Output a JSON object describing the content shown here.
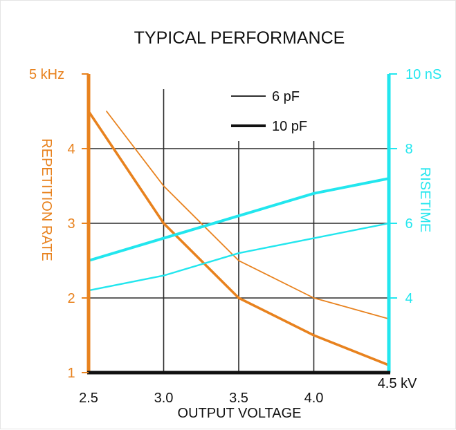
{
  "chart_data": {
    "type": "line",
    "title": "TYPICAL PERFORMANCE",
    "xlabel": "OUTPUT VOLTAGE",
    "ylabel_left": "REPETITION RATE",
    "ylabel_right": "RISETIME",
    "xlim": [
      2.5,
      4.5
    ],
    "ylim_left": [
      1,
      5
    ],
    "ylim_right": [
      2,
      10
    ],
    "x_ticks": [
      "2.5",
      "3.0",
      "3.5",
      "4.0"
    ],
    "x_end_label": "4.5 kV",
    "y_left_ticks": [
      "1",
      "2",
      "3",
      "4"
    ],
    "y_left_top_label": "5 kHz",
    "y_right_ticks": [
      "4",
      "6",
      "8"
    ],
    "y_right_top_label": "10 nS",
    "grid": true,
    "legend": [
      {
        "label": "6 pF",
        "style": "thin"
      },
      {
        "label": "10 pF",
        "style": "thick"
      }
    ],
    "colors": {
      "repetition": "#e8821e",
      "risetime": "#22e6ee",
      "axis": "#111111",
      "grid": "#2a2a2a",
      "text": "#111111"
    },
    "series": [
      {
        "name": "6 pF",
        "axis": "left",
        "quantity": "repetition",
        "style": "thin",
        "x": [
          2.62,
          3.0,
          3.5,
          4.0,
          4.5
        ],
        "y": [
          4.5,
          3.5,
          2.5,
          2.0,
          1.72
        ]
      },
      {
        "name": "10 pF",
        "axis": "left",
        "quantity": "repetition",
        "style": "thick",
        "x": [
          2.5,
          3.0,
          3.5,
          4.0,
          4.5
        ],
        "y": [
          4.5,
          3.0,
          2.0,
          1.5,
          1.1
        ]
      },
      {
        "name": "6 pF",
        "axis": "right",
        "quantity": "risetime",
        "style": "thin",
        "x": [
          2.5,
          3.0,
          3.5,
          4.0,
          4.5
        ],
        "y": [
          4.2,
          4.6,
          5.2,
          5.6,
          6.0
        ]
      },
      {
        "name": "10 pF",
        "axis": "right",
        "quantity": "risetime",
        "style": "thick",
        "x": [
          2.5,
          3.0,
          3.5,
          4.0,
          4.5
        ],
        "y": [
          5.0,
          5.6,
          6.2,
          6.8,
          7.2
        ]
      }
    ]
  }
}
